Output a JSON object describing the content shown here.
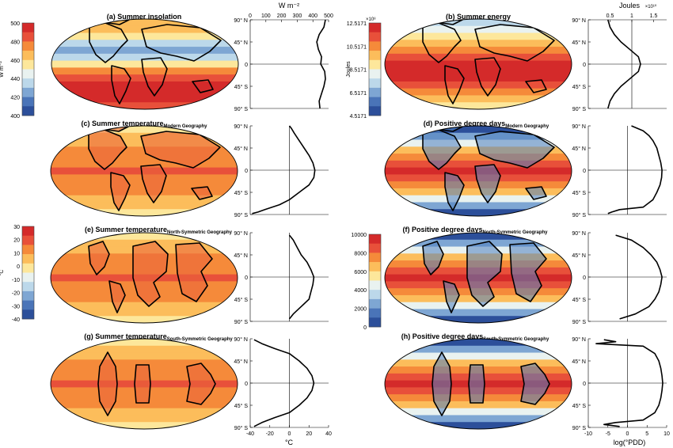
{
  "panels": [
    {
      "title": "(a) Summer insolation",
      "subscript": ""
    },
    {
      "title": "(b) Summer energy",
      "subscript": ""
    },
    {
      "title": "(c) Summer temperature",
      "subscript": "Modern Geography"
    },
    {
      "title": "(d) Positive degree days",
      "subscript": "Modern Geography"
    },
    {
      "title": "(e) Summer temperature",
      "subscript": "North-Symmetric Geography"
    },
    {
      "title": "(f) Positive degree days",
      "subscript": "North-Symmetric Geography"
    },
    {
      "title": "(g) Summer temperature",
      "subscript": "South-Symmetric Geography"
    },
    {
      "title": "(h) Positive degree days",
      "subscript": "South-Symmetric Geography"
    }
  ],
  "colorbars": [
    {
      "label": "W m⁻²",
      "ticks": [
        "500",
        "480",
        "460",
        "440",
        "420",
        "400"
      ]
    },
    {
      "label": "Joules",
      "exponent": "×10⁸",
      "ticks": [
        "12.5171",
        "10.5171",
        "8.5171",
        "6.5171",
        "4.5171"
      ]
    },
    {
      "label": "°C",
      "ticks": [
        "30",
        "20",
        "10",
        "0",
        "-10",
        "-20",
        "-30",
        "-40"
      ]
    },
    {
      "label": "",
      "ticks": [
        "10000",
        "8000",
        "6000",
        "4000",
        "2000",
        "0"
      ]
    }
  ],
  "profile_axes": {
    "lat_ticks": [
      "90° N",
      "45° N",
      "0",
      "45° S",
      "90° S"
    ],
    "col1": {
      "top_label": "W m⁻²",
      "top_ticks": [
        "0",
        "100",
        "200",
        "300",
        "400",
        "500"
      ],
      "bottom_label": "°C",
      "bottom_ticks": [
        "-40",
        "-20",
        "0",
        "20",
        "40"
      ]
    },
    "col2": {
      "top_label": "Joules",
      "top_exponent": "×10¹⁰",
      "top_ticks": [
        "0.5",
        "1",
        "1.5"
      ],
      "bottom_label": "log(°PDD)",
      "bottom_ticks": [
        "-10",
        "-5",
        "0",
        "5",
        "10"
      ]
    }
  },
  "chart_data": [
    {
      "type": "line",
      "panel": "a",
      "xlabel": "W m⁻²",
      "xlim": [
        0,
        500
      ],
      "ylim": [
        -90,
        90
      ],
      "series": [
        {
          "y": [
            90,
            75,
            60,
            45,
            30,
            15,
            0,
            -15,
            -30,
            -45,
            -60,
            -75,
            -90
          ],
          "x": [
            480,
            470,
            440,
            425,
            435,
            455,
            450,
            475,
            480,
            470,
            455,
            440,
            445
          ]
        }
      ]
    },
    {
      "type": "line",
      "panel": "b",
      "xlabel": "Joules",
      "xlim": [
        0,
        1.8
      ],
      "ylim": [
        -90,
        90
      ],
      "series": [
        {
          "y": [
            90,
            75,
            60,
            45,
            30,
            15,
            0,
            -15,
            -30,
            -45,
            -60,
            -75,
            -90
          ],
          "x": [
            0.45,
            0.5,
            0.6,
            0.75,
            0.95,
            1.15,
            1.2,
            1.15,
            0.95,
            0.75,
            0.6,
            0.5,
            0.45
          ]
        }
      ]
    },
    {
      "type": "line",
      "panel": "c",
      "xlabel": "°C",
      "xlim": [
        -40,
        40
      ],
      "ylim": [
        -90,
        90
      ],
      "series": [
        {
          "y": [
            90,
            85,
            75,
            60,
            45,
            30,
            15,
            0,
            -15,
            -30,
            -45,
            -60,
            -70,
            -80,
            -85,
            -88
          ],
          "x": [
            0,
            2,
            5,
            10,
            15,
            20,
            24,
            26,
            25,
            20,
            10,
            0,
            -10,
            -25,
            -32,
            -38
          ]
        }
      ]
    },
    {
      "type": "line",
      "panel": "d",
      "xlabel": "log(°PDD)",
      "xlim": [
        -10,
        10
      ],
      "ylim": [
        -90,
        90
      ],
      "series": [
        {
          "y": [
            90,
            80,
            70,
            60,
            45,
            30,
            15,
            0,
            -15,
            -30,
            -45,
            -60,
            -75,
            -80,
            -85,
            -88
          ],
          "x": [
            1,
            4,
            5.5,
            6.5,
            7.5,
            8,
            8.5,
            8.8,
            8.7,
            8.3,
            7.5,
            6.5,
            4,
            -2,
            -4,
            -5
          ]
        }
      ]
    },
    {
      "type": "line",
      "panel": "e",
      "xlabel": "°C",
      "xlim": [
        -40,
        40
      ],
      "ylim": [
        -90,
        90
      ],
      "series": [
        {
          "y": [
            85,
            75,
            60,
            45,
            30,
            15,
            0,
            -15,
            -30,
            -45,
            -60,
            -75,
            -85
          ],
          "x": [
            0,
            4,
            8,
            12,
            18,
            22,
            25,
            24,
            22,
            20,
            12,
            4,
            0
          ]
        }
      ]
    },
    {
      "type": "line",
      "panel": "f",
      "xlabel": "log(°PDD)",
      "xlim": [
        -10,
        10
      ],
      "ylim": [
        -90,
        90
      ],
      "series": [
        {
          "y": [
            85,
            75,
            60,
            45,
            30,
            15,
            0,
            -15,
            -30,
            -45,
            -60,
            -75,
            -85
          ],
          "x": [
            -3,
            1,
            4,
            6,
            7.5,
            8.3,
            8.8,
            8.5,
            8,
            7,
            5.5,
            2,
            -2
          ]
        }
      ]
    },
    {
      "type": "line",
      "panel": "g",
      "xlabel": "°C",
      "xlim": [
        -40,
        40
      ],
      "ylim": [
        -90,
        90
      ],
      "series": [
        {
          "y": [
            88,
            80,
            70,
            60,
            45,
            30,
            15,
            0,
            -15,
            -30,
            -45,
            -60,
            -70,
            -80,
            -88
          ],
          "x": [
            -36,
            -28,
            -15,
            0,
            10,
            18,
            23,
            25,
            23,
            18,
            10,
            0,
            -15,
            -28,
            -36
          ]
        }
      ]
    },
    {
      "type": "line",
      "panel": "h",
      "xlabel": "log(°PDD)",
      "xlim": [
        -10,
        10
      ],
      "ylim": [
        -90,
        90
      ],
      "series": [
        {
          "y": [
            88,
            84,
            80,
            75,
            60,
            45,
            30,
            15,
            0,
            -15,
            -30,
            -45,
            -60,
            -75,
            -80,
            -84,
            -88
          ],
          "x": [
            -6,
            -3,
            -8,
            4,
            7,
            8,
            8.5,
            8.8,
            9,
            8.8,
            8.5,
            8,
            7,
            4,
            -3,
            -6,
            -2
          ]
        }
      ]
    }
  ],
  "colors": {
    "ramp": [
      "#2c4f9a",
      "#4a74b8",
      "#7ea6d3",
      "#bcd8ea",
      "#e9f2f0",
      "#fde79b",
      "#fcbd5b",
      "#f58a3a",
      "#e8503a",
      "#d42a2a"
    ]
  }
}
